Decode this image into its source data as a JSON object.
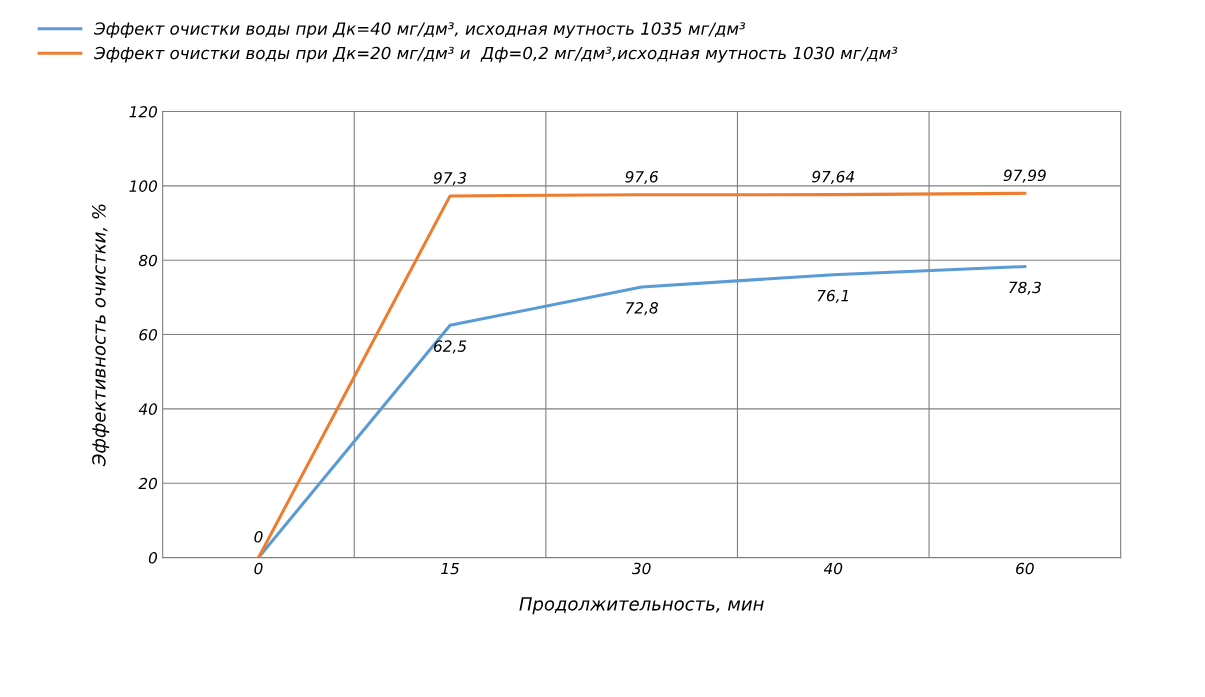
{
  "chart_data": {
    "type": "line",
    "xlabel": "Продолжительность, мин",
    "ylabel": "Эффективность очистки, %",
    "categories": [
      "0",
      "15",
      "30",
      "40",
      "60"
    ],
    "series": [
      {
        "name": "Эффект очистки воды при Дк=40 мг/дм³, исходная мутность 1035 мг/дм³",
        "color": "#5b9bd5",
        "values": [
          0,
          62.5,
          72.8,
          76.1,
          78.3
        ],
        "value_labels": [
          null,
          "62,5",
          "72,8",
          "76,1",
          "78,3"
        ]
      },
      {
        "name": "Эффект очистки воды при Дк=20 мг/дм³ и  Дф=0,2 мг/дм³,исходная мутность 1030 мг/дм³",
        "color": "#ed7d31",
        "values": [
          0,
          97.3,
          97.6,
          97.64,
          97.99
        ],
        "value_labels": [
          "0",
          "97,3",
          "97,6",
          "97,64",
          "97,99"
        ]
      }
    ],
    "ylim": [
      0,
      120
    ],
    "yticks": [
      0,
      20,
      40,
      60,
      80,
      100,
      120
    ],
    "grid": true,
    "legend": "top left",
    "marker": "none",
    "line_style": "solid"
  }
}
